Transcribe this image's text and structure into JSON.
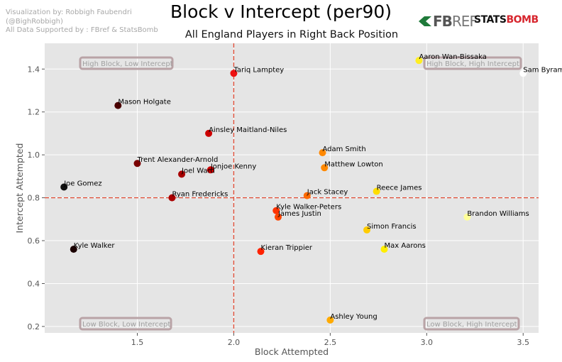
{
  "credits": {
    "line1": "Visualization by: Robbigh Faubendri",
    "line2": "(@BighRobbigh)",
    "line3": "All Data Supported by : FBref & StatsBomb"
  },
  "logos": {
    "fbref": {
      "fb": "FB",
      "ref": "REF",
      "color": "#1f7a3a"
    },
    "statsbomb": {
      "stats": "STATS",
      "bomb": "BOMB"
    }
  },
  "chart_data": {
    "type": "scatter",
    "title": "Block v Intercept (per90)",
    "subtitle": "All England Players in Right Back Position",
    "xlabel": "Block Attempted",
    "ylabel": "Intercept Attempted",
    "xlim": [
      1.02,
      3.58
    ],
    "ylim": [
      0.17,
      1.52
    ],
    "xticks": [
      1.5,
      2.0,
      2.5,
      3.0,
      3.5
    ],
    "yticks": [
      0.2,
      0.4,
      0.6,
      0.8,
      1.0,
      1.2,
      1.4
    ],
    "grid": true,
    "reference_lines": {
      "x": 2.0,
      "y": 0.8,
      "color": "#e24a33"
    },
    "quadrant_labels": {
      "top_left": "High Block, Low Intercept",
      "top_right": "High Block, High Intercept",
      "bottom_left": "Low Block, Low Intercept",
      "bottom_right": "Low Block, High Intercept"
    },
    "points": [
      {
        "name": "Aaron Wan-Bissaka",
        "x": 2.96,
        "y": 1.44,
        "color": "#ffee22"
      },
      {
        "name": "Sam Byram",
        "x": 3.5,
        "y": 1.38,
        "color": "#ffffff"
      },
      {
        "name": "Tariq Lamptey",
        "x": 2.0,
        "y": 1.38,
        "color": "#ee1111"
      },
      {
        "name": "Mason Holgate",
        "x": 1.4,
        "y": 1.23,
        "color": "#4a0000"
      },
      {
        "name": "Ainsley Maitland-Niles",
        "x": 1.87,
        "y": 1.1,
        "color": "#cc0000"
      },
      {
        "name": "Adam Smith",
        "x": 2.46,
        "y": 1.01,
        "color": "#ff8800"
      },
      {
        "name": "Trent Alexander-Arnold",
        "x": 1.5,
        "y": 0.96,
        "color": "#7a0000"
      },
      {
        "name": "Matthew Lowton",
        "x": 2.47,
        "y": 0.94,
        "color": "#ff8800"
      },
      {
        "name": "Jonjoe Kenny",
        "x": 1.88,
        "y": 0.93,
        "color": "#cc0000"
      },
      {
        "name": "Joel Ward",
        "x": 1.73,
        "y": 0.91,
        "color": "#a80000"
      },
      {
        "name": "Joe Gomez",
        "x": 1.12,
        "y": 0.85,
        "color": "#111111"
      },
      {
        "name": "Reece James",
        "x": 2.74,
        "y": 0.83,
        "color": "#ffdd00"
      },
      {
        "name": "Jack Stacey",
        "x": 2.38,
        "y": 0.81,
        "color": "#ff6a00"
      },
      {
        "name": "Ryan Fredericks",
        "x": 1.68,
        "y": 0.8,
        "color": "#aa0000"
      },
      {
        "name": "Kyle Walker-Peters",
        "x": 2.22,
        "y": 0.74,
        "color": "#ff3300"
      },
      {
        "name": "James Justin",
        "x": 2.23,
        "y": 0.71,
        "color": "#ff4400"
      },
      {
        "name": "Brandon Williams",
        "x": 3.21,
        "y": 0.71,
        "color": "#ffff99"
      },
      {
        "name": "Simon Francis",
        "x": 2.69,
        "y": 0.65,
        "color": "#ffcc00"
      },
      {
        "name": "Max Aarons",
        "x": 2.78,
        "y": 0.56,
        "color": "#ffee00"
      },
      {
        "name": "Kyle Walker",
        "x": 1.17,
        "y": 0.56,
        "color": "#1a0000"
      },
      {
        "name": "Kieran Trippier",
        "x": 2.14,
        "y": 0.55,
        "color": "#ff2200"
      },
      {
        "name": "Ashley Young",
        "x": 2.5,
        "y": 0.23,
        "color": "#ffaa00"
      }
    ]
  }
}
